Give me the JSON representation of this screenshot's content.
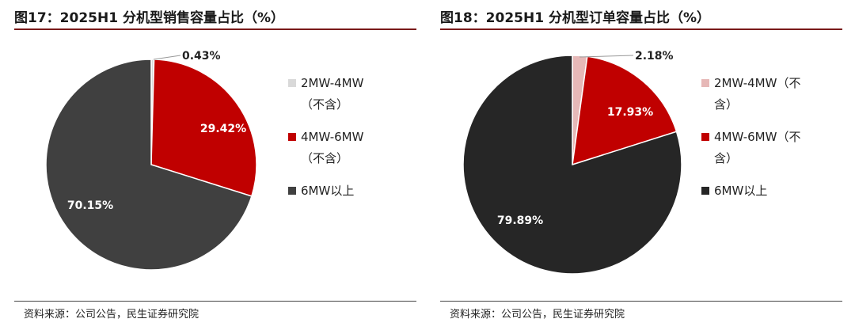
{
  "source_text": "资料来源：公司公告，民生证券研究院",
  "chart_data": [
    {
      "type": "pie",
      "title": "图17：2025H1 分机型销售容量占比（%）",
      "categories": [
        "2MW-4MW（不含）",
        "4MW-6MW（不含）",
        "6MW以上"
      ],
      "values": [
        0.43,
        29.42,
        70.15
      ],
      "labels": [
        "0.43%",
        "29.42%",
        "70.15%"
      ],
      "colors": [
        "#d9d9d9",
        "#c00000",
        "#404040"
      ],
      "legend_lines": [
        [
          "2MW-4MW",
          "（不含）"
        ],
        [
          "4MW-6MW",
          "（不含）"
        ],
        [
          "6MW以上"
        ]
      ],
      "legend": "right"
    },
    {
      "type": "pie",
      "title": "图18：2025H1 分机型订单容量占比（%）",
      "categories": [
        "2MW-4MW（不含）",
        "4MW-6MW（不含）",
        "6MW以上"
      ],
      "values": [
        2.18,
        17.93,
        79.89
      ],
      "labels": [
        "2.18%",
        "17.93%",
        "79.89%"
      ],
      "colors": [
        "#e6b8b7",
        "#c00000",
        "#262626"
      ],
      "legend_lines": [
        [
          "2MW-4MW（不",
          "含）"
        ],
        [
          "4MW-6MW（不",
          "含）"
        ],
        [
          "6MW以上"
        ]
      ],
      "legend": "right"
    }
  ]
}
